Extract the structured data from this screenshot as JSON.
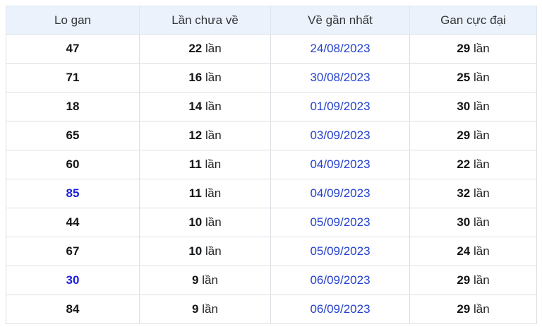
{
  "table": {
    "headers": [
      {
        "label": "Lo gan"
      },
      {
        "label": "Lần chưa về"
      },
      {
        "label": "Về gần nhất"
      },
      {
        "label": "Gan cực đại"
      }
    ],
    "unit_suffix": "lần",
    "rows": [
      {
        "number": "47",
        "missed": "22",
        "last_date": "24/08/2023",
        "max_gap": "29",
        "highlight": false
      },
      {
        "number": "71",
        "missed": "16",
        "last_date": "30/08/2023",
        "max_gap": "25",
        "highlight": false
      },
      {
        "number": "18",
        "missed": "14",
        "last_date": "01/09/2023",
        "max_gap": "30",
        "highlight": false
      },
      {
        "number": "65",
        "missed": "12",
        "last_date": "03/09/2023",
        "max_gap": "29",
        "highlight": false
      },
      {
        "number": "60",
        "missed": "11",
        "last_date": "04/09/2023",
        "max_gap": "22",
        "highlight": false
      },
      {
        "number": "85",
        "missed": "11",
        "last_date": "04/09/2023",
        "max_gap": "32",
        "highlight": true
      },
      {
        "number": "44",
        "missed": "10",
        "last_date": "05/09/2023",
        "max_gap": "30",
        "highlight": false
      },
      {
        "number": "67",
        "missed": "10",
        "last_date": "05/09/2023",
        "max_gap": "24",
        "highlight": false
      },
      {
        "number": "30",
        "missed": "9",
        "last_date": "06/09/2023",
        "max_gap": "29",
        "highlight": true
      },
      {
        "number": "84",
        "missed": "9",
        "last_date": "06/09/2023",
        "max_gap": "29",
        "highlight": false
      }
    ]
  },
  "colors": {
    "header_bg": "#ebf2fb",
    "border": "#dcdfe3",
    "date_link_blue": "#2441cd",
    "highlight_number_blue": "#1d1de0",
    "body_text": "#141517",
    "header_text": "#333538"
  }
}
